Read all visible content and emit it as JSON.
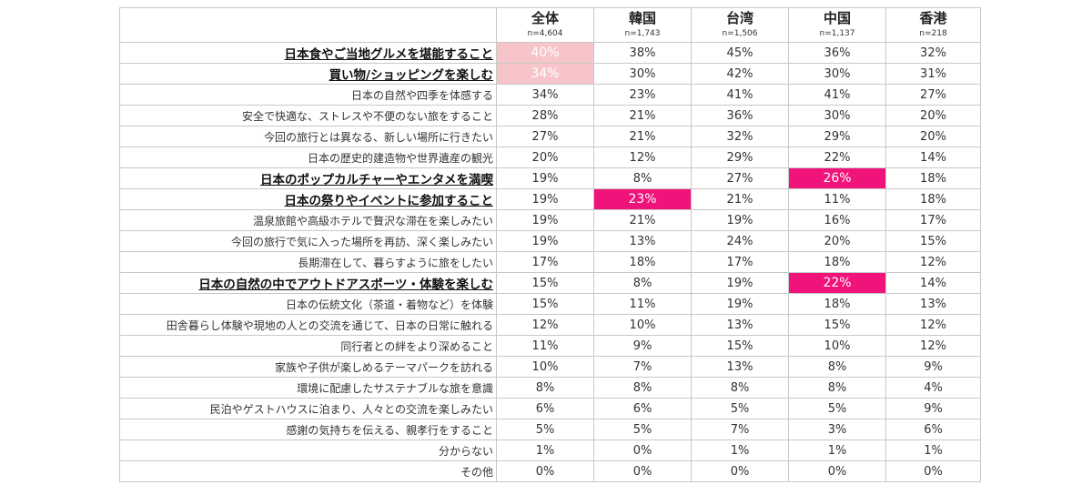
{
  "chart_data": {
    "type": "table",
    "colors": {
      "highlight_light": "#f7c5c9",
      "highlight_strong": "#f0137a"
    },
    "columns": [
      {
        "name": "全体",
        "n": "n=4,604"
      },
      {
        "name": "韓国",
        "n": "n=1,743"
      },
      {
        "name": "台湾",
        "n": "n=1,506"
      },
      {
        "name": "中国",
        "n": "n=1,137"
      },
      {
        "name": "香港",
        "n": "n=218"
      }
    ],
    "rows": [
      {
        "label": "日本食やご当地グルメを堪能すること",
        "emphasis": true,
        "values": [
          "40%",
          "38%",
          "45%",
          "36%",
          "32%"
        ],
        "highlights": [
          "light",
          "",
          "",
          "",
          ""
        ]
      },
      {
        "label": "買い物/ショッピングを楽しむ",
        "emphasis": true,
        "values": [
          "34%",
          "30%",
          "42%",
          "30%",
          "31%"
        ],
        "highlights": [
          "light",
          "",
          "",
          "",
          ""
        ]
      },
      {
        "label": "日本の自然や四季を体感する",
        "emphasis": false,
        "values": [
          "34%",
          "23%",
          "41%",
          "41%",
          "27%"
        ],
        "highlights": [
          "",
          "",
          "",
          "",
          ""
        ]
      },
      {
        "label": "安全で快適な、ストレスや不便のない旅をすること",
        "emphasis": false,
        "values": [
          "28%",
          "21%",
          "36%",
          "30%",
          "20%"
        ],
        "highlights": [
          "",
          "",
          "",
          "",
          ""
        ]
      },
      {
        "label": "今回の旅行とは異なる、新しい場所に行きたい",
        "emphasis": false,
        "values": [
          "27%",
          "21%",
          "32%",
          "29%",
          "20%"
        ],
        "highlights": [
          "",
          "",
          "",
          "",
          ""
        ]
      },
      {
        "label": "日本の歴史的建造物や世界遺産の観光",
        "emphasis": false,
        "values": [
          "20%",
          "12%",
          "29%",
          "22%",
          "14%"
        ],
        "highlights": [
          "",
          "",
          "",
          "",
          ""
        ]
      },
      {
        "label": "日本のポップカルチャーやエンタメを満喫",
        "emphasis": true,
        "values": [
          "19%",
          "8%",
          "27%",
          "26%",
          "18%"
        ],
        "highlights": [
          "",
          "",
          "",
          "strong",
          ""
        ]
      },
      {
        "label": "日本の祭りやイベントに参加すること",
        "emphasis": true,
        "values": [
          "19%",
          "23%",
          "21%",
          "11%",
          "18%"
        ],
        "highlights": [
          "",
          "strong",
          "",
          "",
          ""
        ]
      },
      {
        "label": "温泉旅館や高級ホテルで贅沢な滞在を楽しみたい",
        "emphasis": false,
        "values": [
          "19%",
          "21%",
          "19%",
          "16%",
          "17%"
        ],
        "highlights": [
          "",
          "",
          "",
          "",
          ""
        ]
      },
      {
        "label": "今回の旅行で気に入った場所を再訪、深く楽しみたい",
        "emphasis": false,
        "values": [
          "19%",
          "13%",
          "24%",
          "20%",
          "15%"
        ],
        "highlights": [
          "",
          "",
          "",
          "",
          ""
        ]
      },
      {
        "label": "長期滞在して、暮らすように旅をしたい",
        "emphasis": false,
        "values": [
          "17%",
          "18%",
          "17%",
          "18%",
          "12%"
        ],
        "highlights": [
          "",
          "",
          "",
          "",
          ""
        ]
      },
      {
        "label": "日本の自然の中でアウトドアスポーツ・体験を楽しむ",
        "emphasis": true,
        "values": [
          "15%",
          "8%",
          "19%",
          "22%",
          "14%"
        ],
        "highlights": [
          "",
          "",
          "",
          "strong",
          ""
        ]
      },
      {
        "label": "日本の伝統文化（茶道・着物など）を体験",
        "emphasis": false,
        "values": [
          "15%",
          "11%",
          "19%",
          "18%",
          "13%"
        ],
        "highlights": [
          "",
          "",
          "",
          "",
          ""
        ]
      },
      {
        "label": "田舎暮らし体験や現地の人との交流を通じて、日本の日常に触れる",
        "emphasis": false,
        "values": [
          "12%",
          "10%",
          "13%",
          "15%",
          "12%"
        ],
        "highlights": [
          "",
          "",
          "",
          "",
          ""
        ]
      },
      {
        "label": "同行者との絆をより深めること",
        "emphasis": false,
        "values": [
          "11%",
          "9%",
          "15%",
          "10%",
          "12%"
        ],
        "highlights": [
          "",
          "",
          "",
          "",
          ""
        ]
      },
      {
        "label": "家族や子供が楽しめるテーマパークを訪れる",
        "emphasis": false,
        "values": [
          "10%",
          "7%",
          "13%",
          "8%",
          "9%"
        ],
        "highlights": [
          "",
          "",
          "",
          "",
          ""
        ]
      },
      {
        "label": "環境に配慮したサステナブルな旅を意識",
        "emphasis": false,
        "values": [
          "8%",
          "8%",
          "8%",
          "8%",
          "4%"
        ],
        "highlights": [
          "",
          "",
          "",
          "",
          ""
        ]
      },
      {
        "label": "民泊やゲストハウスに泊まり、人々との交流を楽しみたい",
        "emphasis": false,
        "values": [
          "6%",
          "6%",
          "5%",
          "5%",
          "9%"
        ],
        "highlights": [
          "",
          "",
          "",
          "",
          ""
        ]
      },
      {
        "label": "感謝の気持ちを伝える、親孝行をすること",
        "emphasis": false,
        "values": [
          "5%",
          "5%",
          "7%",
          "3%",
          "6%"
        ],
        "highlights": [
          "",
          "",
          "",
          "",
          ""
        ]
      },
      {
        "label": "分からない",
        "emphasis": false,
        "values": [
          "1%",
          "0%",
          "1%",
          "1%",
          "1%"
        ],
        "highlights": [
          "",
          "",
          "",
          "",
          ""
        ]
      },
      {
        "label": "その他",
        "emphasis": false,
        "values": [
          "0%",
          "0%",
          "0%",
          "0%",
          "0%"
        ],
        "highlights": [
          "",
          "",
          "",
          "",
          ""
        ]
      }
    ]
  }
}
